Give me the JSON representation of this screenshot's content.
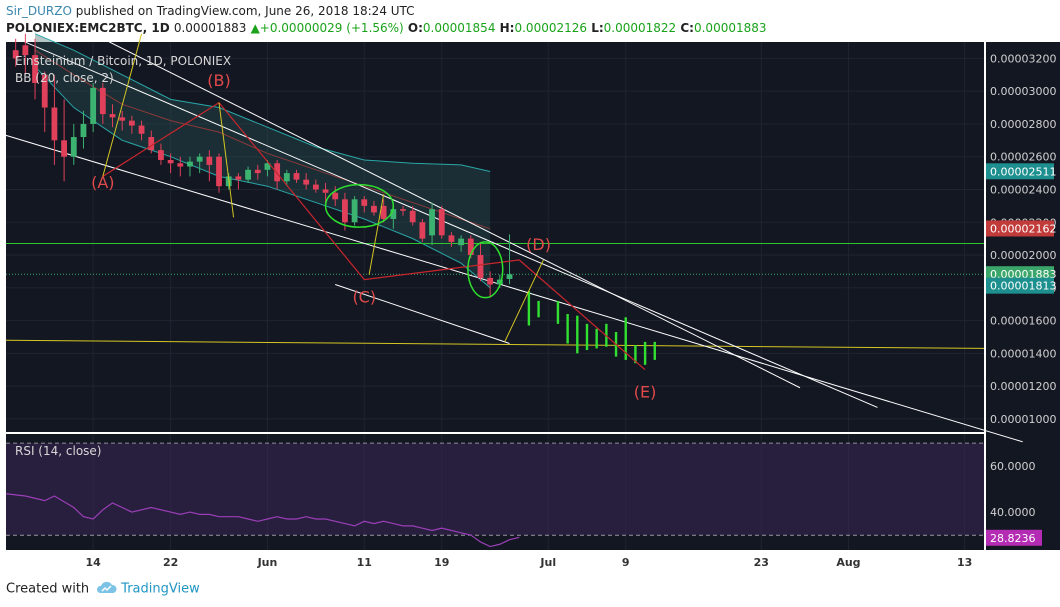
{
  "header": {
    "user": "Sir_DURZO",
    "published": "published on TradingView.com, June 26, 2018 18:24 UTC",
    "symbol": "POLONIEX:EMC2BTC, 1D",
    "last": "0.00001883",
    "change": "+0.00000029 (+1.56%)",
    "o_label": "O:",
    "o_value": "0.00001854",
    "h_label": "H:",
    "h_value": "0.00002126",
    "l_label": "L:",
    "l_value": "0.00001822",
    "c_label": "C:",
    "c_value": "0.00001883"
  },
  "legend": {
    "title": "Einsteinium / Bitcoin, 1D, POLONIEX",
    "bb": "BB (20, close, 2)",
    "rsi": "RSI (14, close)"
  },
  "colors": {
    "up": "#3cb371",
    "down": "#e0405a",
    "projection": "#32e032",
    "annotation": "#e04a4a",
    "yellow": "#d4c623",
    "green_line": "#2ec52e",
    "trend": "#ffffff",
    "rsi_line": "#9b3fb8",
    "price_bg": "#131722",
    "rsi_bg": "#2a1e3c"
  },
  "chart_data": {
    "type": "candlestick",
    "price_axis": {
      "ticks": [
        "0.00003200",
        "0.00003000",
        "0.00002800",
        "0.00002600",
        "0.00002400",
        "0.00002200",
        "0.00002000",
        "0.00001800",
        "0.00001600",
        "0.00001400",
        "0.00001200",
        "0.00001000"
      ],
      "range": [
        9.2e-06,
        3.3e-05
      ],
      "badges": [
        {
          "text": "0.00002511",
          "value": 2.511e-05,
          "color": "#1d8f8f"
        },
        {
          "text": "0.00002162",
          "value": 2.162e-05,
          "color": "#c23b3b"
        },
        {
          "text": "0.00001883",
          "value": 1.883e-05,
          "color": "#3aa66a"
        },
        {
          "text": "0.00001813",
          "value": 1.813e-05,
          "color": "#1d8f8f"
        }
      ]
    },
    "time_axis": {
      "labels": [
        {
          "text": "14",
          "day": -3
        },
        {
          "text": "22",
          "day": 5
        },
        {
          "text": "Jun",
          "day": 15
        },
        {
          "text": "11",
          "day": 25
        },
        {
          "text": "19",
          "day": 33
        },
        {
          "text": "Jul",
          "day": 44
        },
        {
          "text": "9",
          "day": 52
        },
        {
          "text": "23",
          "day": 66
        },
        {
          "text": "Aug",
          "day": 75
        },
        {
          "text": "13",
          "day": 87
        }
      ],
      "first_day": -12,
      "last_day": 89
    },
    "candles": [
      {
        "o": 3.25,
        "h": 3.32,
        "l": 3.15,
        "c": 3.2
      },
      {
        "o": 3.28,
        "h": 3.35,
        "l": 3.1,
        "c": 3.22
      },
      {
        "o": 3.22,
        "h": 3.32,
        "l": 2.95,
        "c": 3.05
      },
      {
        "o": 3.1,
        "h": 3.12,
        "l": 2.75,
        "c": 2.9
      },
      {
        "o": 2.9,
        "h": 3.1,
        "l": 2.55,
        "c": 2.7
      },
      {
        "o": 2.7,
        "h": 2.95,
        "l": 2.45,
        "c": 2.6
      },
      {
        "o": 2.6,
        "h": 2.8,
        "l": 2.55,
        "c": 2.72
      },
      {
        "o": 2.72,
        "h": 2.88,
        "l": 2.65,
        "c": 2.8
      },
      {
        "o": 2.8,
        "h": 3.05,
        "l": 2.75,
        "c": 3.02
      },
      {
        "o": 3.02,
        "h": 3.05,
        "l": 2.8,
        "c": 2.86
      },
      {
        "o": 2.86,
        "h": 2.92,
        "l": 2.78,
        "c": 2.84
      },
      {
        "o": 2.84,
        "h": 2.88,
        "l": 2.76,
        "c": 2.82
      },
      {
        "o": 2.82,
        "h": 2.85,
        "l": 2.74,
        "c": 2.79
      },
      {
        "o": 2.79,
        "h": 2.82,
        "l": 2.7,
        "c": 2.74
      },
      {
        "o": 2.72,
        "h": 2.76,
        "l": 2.62,
        "c": 2.64
      },
      {
        "o": 2.64,
        "h": 2.68,
        "l": 2.55,
        "c": 2.58
      },
      {
        "o": 2.58,
        "h": 2.62,
        "l": 2.5,
        "c": 2.56
      },
      {
        "o": 2.56,
        "h": 2.6,
        "l": 2.48,
        "c": 2.54
      },
      {
        "o": 2.54,
        "h": 2.6,
        "l": 2.48,
        "c": 2.57
      },
      {
        "o": 2.57,
        "h": 2.62,
        "l": 2.5,
        "c": 2.6
      },
      {
        "o": 2.6,
        "h": 2.64,
        "l": 2.45,
        "c": 2.55
      },
      {
        "o": 2.6,
        "h": 2.62,
        "l": 2.38,
        "c": 2.42
      },
      {
        "o": 2.42,
        "h": 2.5,
        "l": 2.4,
        "c": 2.48
      },
      {
        "o": 2.48,
        "h": 2.5,
        "l": 2.4,
        "c": 2.46
      },
      {
        "o": 2.46,
        "h": 2.54,
        "l": 2.44,
        "c": 2.52
      },
      {
        "o": 2.52,
        "h": 2.55,
        "l": 2.46,
        "c": 2.5
      },
      {
        "o": 2.52,
        "h": 2.58,
        "l": 2.48,
        "c": 2.56
      },
      {
        "o": 2.56,
        "h": 2.58,
        "l": 2.4,
        "c": 2.45
      },
      {
        "o": 2.45,
        "h": 2.52,
        "l": 2.42,
        "c": 2.5
      },
      {
        "o": 2.5,
        "h": 2.52,
        "l": 2.44,
        "c": 2.46
      },
      {
        "o": 2.46,
        "h": 2.5,
        "l": 2.4,
        "c": 2.43
      },
      {
        "o": 2.43,
        "h": 2.46,
        "l": 2.38,
        "c": 2.4
      },
      {
        "o": 2.4,
        "h": 2.44,
        "l": 2.3,
        "c": 2.38
      },
      {
        "o": 2.38,
        "h": 2.42,
        "l": 2.3,
        "c": 2.34
      },
      {
        "o": 2.34,
        "h": 2.38,
        "l": 2.15,
        "c": 2.2
      },
      {
        "o": 2.2,
        "h": 2.36,
        "l": 2.18,
        "c": 2.34
      },
      {
        "o": 2.34,
        "h": 2.36,
        "l": 2.26,
        "c": 2.3
      },
      {
        "o": 2.3,
        "h": 2.33,
        "l": 2.24,
        "c": 2.26
      },
      {
        "o": 2.3,
        "h": 2.34,
        "l": 2.2,
        "c": 2.22
      },
      {
        "o": 2.22,
        "h": 2.3,
        "l": 2.16,
        "c": 2.28
      },
      {
        "o": 2.28,
        "h": 2.3,
        "l": 2.24,
        "c": 2.27
      },
      {
        "o": 2.27,
        "h": 2.3,
        "l": 2.18,
        "c": 2.2
      },
      {
        "o": 2.2,
        "h": 2.22,
        "l": 2.08,
        "c": 2.1
      },
      {
        "o": 2.12,
        "h": 2.32,
        "l": 2.06,
        "c": 2.28
      },
      {
        "o": 2.28,
        "h": 2.3,
        "l": 2.1,
        "c": 2.12
      },
      {
        "o": 2.12,
        "h": 2.14,
        "l": 2.05,
        "c": 2.08
      },
      {
        "o": 2.06,
        "h": 2.12,
        "l": 2.02,
        "c": 2.1
      },
      {
        "o": 2.1,
        "h": 2.12,
        "l": 1.98,
        "c": 2.0
      },
      {
        "o": 2.0,
        "h": 2.08,
        "l": 1.84,
        "c": 1.86
      },
      {
        "o": 1.86,
        "h": 1.9,
        "l": 1.74,
        "c": 1.82
      },
      {
        "o": 1.82,
        "h": 1.88,
        "l": 1.8,
        "c": 1.85
      },
      {
        "o": 1.854,
        "h": 2.126,
        "l": 1.822,
        "c": 1.883
      }
    ],
    "projection_bars": [
      {
        "day": 42,
        "h": 1.78,
        "l": 1.57
      },
      {
        "day": 43,
        "h": 1.72,
        "l": 1.62
      },
      {
        "day": 45,
        "h": 1.72,
        "l": 1.58
      },
      {
        "day": 46,
        "h": 1.64,
        "l": 1.46
      },
      {
        "day": 47,
        "h": 1.63,
        "l": 1.4
      },
      {
        "day": 48,
        "h": 1.58,
        "l": 1.42
      },
      {
        "day": 49,
        "h": 1.55,
        "l": 1.43
      },
      {
        "day": 50,
        "h": 1.58,
        "l": 1.44
      },
      {
        "day": 51,
        "h": 1.53,
        "l": 1.38
      },
      {
        "day": 52,
        "h": 1.62,
        "l": 1.36
      },
      {
        "day": 53,
        "h": 1.45,
        "l": 1.34
      },
      {
        "day": 54,
        "h": 1.47,
        "l": 1.33
      },
      {
        "day": 55,
        "h": 1.47,
        "l": 1.36
      }
    ],
    "bb_upper": [
      [
        -9,
        3.35
      ],
      [
        -5,
        3.25
      ],
      [
        0,
        3.1
      ],
      [
        5,
        2.95
      ],
      [
        10,
        2.9
      ],
      [
        15,
        2.78
      ],
      [
        20,
        2.66
      ],
      [
        25,
        2.58
      ],
      [
        30,
        2.56
      ],
      [
        35,
        2.55
      ],
      [
        38,
        2.51
      ]
    ],
    "bb_middle": [
      [
        -9,
        3.25
      ],
      [
        -5,
        3.1
      ],
      [
        0,
        2.92
      ],
      [
        5,
        2.82
      ],
      [
        10,
        2.75
      ],
      [
        15,
        2.62
      ],
      [
        20,
        2.52
      ],
      [
        25,
        2.42
      ],
      [
        30,
        2.32
      ],
      [
        35,
        2.22
      ],
      [
        38,
        2.16
      ]
    ],
    "bb_lower": [
      [
        -9,
        3.15
      ],
      [
        -5,
        2.9
      ],
      [
        0,
        2.7
      ],
      [
        5,
        2.6
      ],
      [
        10,
        2.48
      ],
      [
        15,
        2.42
      ],
      [
        20,
        2.32
      ],
      [
        25,
        2.22
      ],
      [
        30,
        2.1
      ],
      [
        35,
        1.95
      ],
      [
        38,
        1.8
      ]
    ],
    "rsi": {
      "levels": [
        70,
        30
      ],
      "ticks": [
        "60.0000",
        "40.0000"
      ],
      "range": [
        23.5,
        74
      ],
      "last": "28.8236",
      "values": [
        [
          -12,
          48
        ],
        [
          -10,
          47
        ],
        [
          -8,
          45
        ],
        [
          -7,
          47
        ],
        [
          -5,
          42
        ],
        [
          -4,
          38
        ],
        [
          -3,
          37
        ],
        [
          -2,
          41
        ],
        [
          -1,
          44
        ],
        [
          0,
          42
        ],
        [
          1,
          40
        ],
        [
          2,
          41
        ],
        [
          3,
          42
        ],
        [
          4,
          41
        ],
        [
          5,
          40
        ],
        [
          6,
          39
        ],
        [
          7,
          40
        ],
        [
          8,
          39
        ],
        [
          9,
          39
        ],
        [
          10,
          38
        ],
        [
          11,
          38
        ],
        [
          12,
          38
        ],
        [
          13,
          37
        ],
        [
          14,
          36
        ],
        [
          15,
          37
        ],
        [
          16,
          38
        ],
        [
          17,
          37
        ],
        [
          18,
          37
        ],
        [
          19,
          38
        ],
        [
          20,
          37
        ],
        [
          21,
          37
        ],
        [
          22,
          36
        ],
        [
          23,
          35
        ],
        [
          24,
          34
        ],
        [
          25,
          36
        ],
        [
          26,
          35
        ],
        [
          27,
          36
        ],
        [
          28,
          35
        ],
        [
          29,
          34
        ],
        [
          30,
          34
        ],
        [
          31,
          33
        ],
        [
          32,
          32
        ],
        [
          33,
          33
        ],
        [
          34,
          32
        ],
        [
          35,
          31
        ],
        [
          36,
          30
        ],
        [
          37,
          27
        ],
        [
          38,
          25
        ],
        [
          39,
          26
        ],
        [
          40,
          28
        ],
        [
          41,
          29
        ]
      ]
    },
    "annotations": {
      "labels": [
        {
          "text": "(A)",
          "day": -2,
          "v": 2.41
        },
        {
          "text": "(B)",
          "day": 10,
          "v": 3.03
        },
        {
          "text": "(C)",
          "day": 25,
          "v": 1.71
        },
        {
          "text": "(D)",
          "day": 43,
          "v": 2.03
        },
        {
          "text": "(E)",
          "day": 54,
          "v": 1.13
        }
      ],
      "wave": [
        [
          -2,
          2.48
        ],
        [
          10,
          2.93
        ],
        [
          25,
          1.85
        ],
        [
          41,
          1.97
        ],
        [
          54,
          1.3
        ]
      ],
      "horizontal_green": 2.07,
      "horizontal_yellow": [
        [
          -12,
          1.48
        ],
        [
          89,
          1.43
        ]
      ],
      "yellow_ticks": [
        [
          [
            -2,
            2.48
          ],
          [
            2,
            3.35
          ]
        ],
        [
          [
            10,
            2.93
          ],
          [
            11.5,
            2.23
          ]
        ],
        [
          [
            25.5,
            1.88
          ],
          [
            27,
            2.37
          ]
        ],
        [
          [
            39.5,
            1.47
          ],
          [
            43.5,
            1.97
          ]
        ]
      ],
      "trendlines": [
        [
          [
            -12,
            2.73
          ],
          [
            93,
            0.86
          ]
        ],
        [
          [
            -12,
            3.35
          ],
          [
            78,
            1.07
          ]
        ],
        [
          [
            -3,
            3.35
          ],
          [
            70,
            1.19
          ]
        ],
        [
          [
            22,
            1.82
          ],
          [
            40,
            1.46
          ]
        ]
      ],
      "ellipses": [
        {
          "day": 24.5,
          "v": 2.3,
          "rx": 3.5,
          "ry": 0.13
        },
        {
          "day": 37.5,
          "v": 1.91,
          "rx": 1.8,
          "ry": 0.17
        }
      ]
    }
  },
  "footer": {
    "created": "Created with",
    "brand": "TradingView"
  }
}
